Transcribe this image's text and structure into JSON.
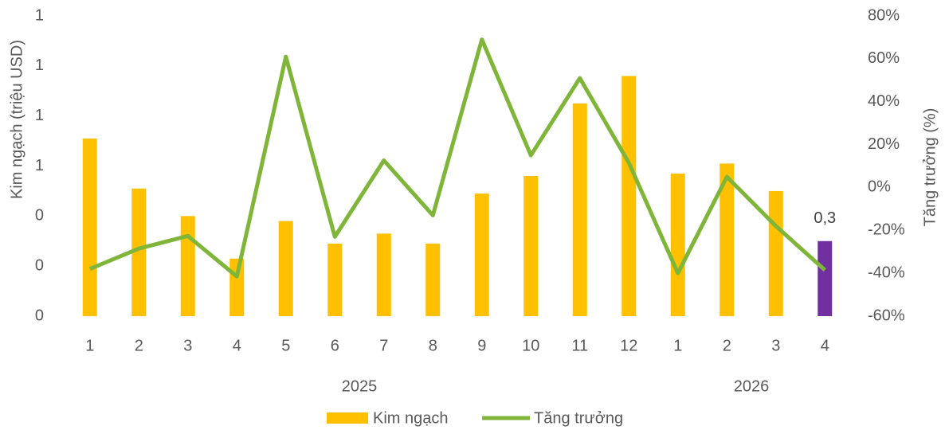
{
  "chart_data": {
    "type": "bar_line",
    "y_label": "Kim ngạch (triệu USD)",
    "y2_label": "Tăng trưởng (%)",
    "categories": [
      "1",
      "2",
      "3",
      "4",
      "5",
      "6",
      "7",
      "8",
      "9",
      "10",
      "11",
      "12",
      "1",
      "2",
      "3",
      "4"
    ],
    "category_groups": [
      "2025",
      "2025",
      "2025",
      "2025",
      "2025",
      "2025",
      "2025",
      "2025",
      "2025",
      "2025",
      "2025",
      "2025",
      "2026",
      "2026",
      "2026",
      "2026"
    ],
    "series": [
      {
        "name": "Kim ngạch",
        "type": "bar",
        "color": "#FFC000",
        "colors": [
          "#FFC000",
          "#FFC000",
          "#FFC000",
          "#FFC000",
          "#FFC000",
          "#FFC000",
          "#FFC000",
          "#FFC000",
          "#FFC000",
          "#FFC000",
          "#FFC000",
          "#FFC000",
          "#FFC000",
          "#FFC000",
          "#FFC000",
          "#7030A0"
        ],
        "values": [
          0.71,
          0.51,
          0.4,
          0.23,
          0.38,
          0.29,
          0.33,
          0.29,
          0.49,
          0.56,
          0.85,
          0.96,
          0.57,
          0.61,
          0.5,
          0.3
        ],
        "value_labels": [
          null,
          null,
          null,
          null,
          null,
          null,
          null,
          null,
          null,
          null,
          null,
          null,
          null,
          null,
          null,
          "0,3"
        ]
      },
      {
        "name": "Tăng trưởng",
        "type": "line",
        "axis": "y2",
        "color": "#7FB539",
        "values": [
          -38,
          -28.5,
          -22.6,
          -41.5,
          61,
          -23,
          12.6,
          -13,
          69,
          15,
          51,
          11.5,
          -40,
          5,
          -18,
          -38.5
        ]
      }
    ],
    "ylim": [
      0,
      1.2
    ],
    "yticks": [
      {
        "value": 0,
        "label": "0"
      },
      {
        "value": 0.2,
        "label": "0"
      },
      {
        "value": 0.4,
        "label": "0"
      },
      {
        "value": 0.6,
        "label": "1"
      },
      {
        "value": 0.8,
        "label": "1"
      },
      {
        "value": 1.0,
        "label": "1"
      },
      {
        "value": 1.2,
        "label": "1"
      }
    ],
    "y2lim": [
      -60,
      80
    ],
    "y2ticks": [
      {
        "value": -60,
        "label": "-60%"
      },
      {
        "value": -40,
        "label": "-40%"
      },
      {
        "value": -20,
        "label": "-20%"
      },
      {
        "value": 0,
        "label": "0%"
      },
      {
        "value": 20,
        "label": "20%"
      },
      {
        "value": 40,
        "label": "40%"
      },
      {
        "value": 60,
        "label": "60%"
      },
      {
        "value": 80,
        "label": "80%"
      }
    ],
    "grid": false,
    "legend": "bottom"
  }
}
